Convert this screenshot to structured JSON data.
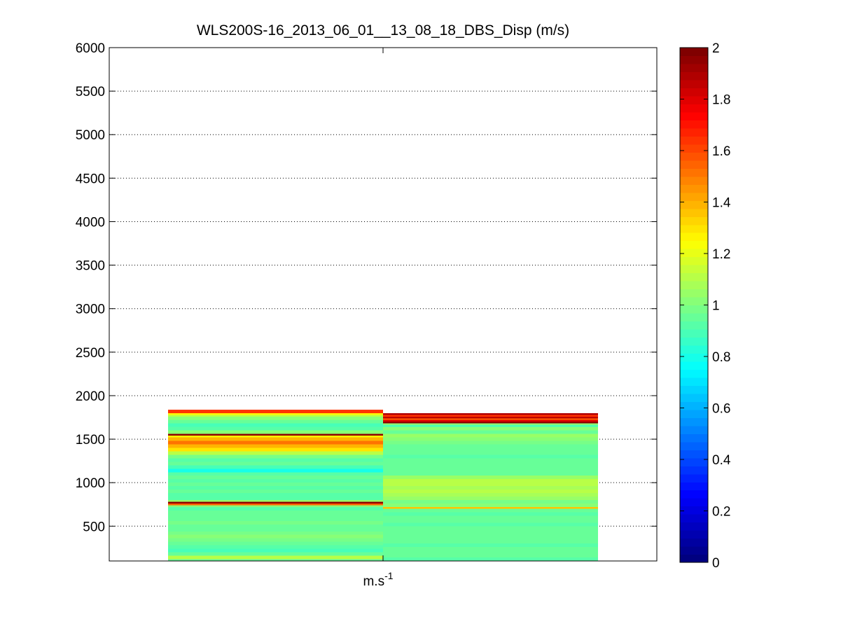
{
  "chart_data": {
    "type": "heatmap",
    "title": "WLS200S-16_2013_06_01__13_08_18_DBS_Disp (m/s)",
    "xlabel": "m.s",
    "xlabel_superscript": "-1",
    "ylim": [
      100,
      6000
    ],
    "yticks": [
      500,
      1000,
      1500,
      2000,
      2500,
      3000,
      3500,
      4000,
      4500,
      5000,
      5500,
      6000
    ],
    "grid": "horizontal dotted",
    "colorbar": {
      "colormap": "jet",
      "clim": [
        0,
        2
      ],
      "ticks": [
        0,
        0.2,
        0.4,
        0.6,
        0.8,
        1,
        1.2,
        1.4,
        1.6,
        1.8,
        2
      ],
      "placement": "right"
    },
    "columns": [
      {
        "x_range": [
          0.5,
          1.5
        ],
        "cells": [
          [
            100,
            120,
            0.95
          ],
          [
            120,
            160,
            1.12
          ],
          [
            160,
            200,
            0.95
          ],
          [
            200,
            240,
            0.9
          ],
          [
            240,
            280,
            0.92
          ],
          [
            280,
            320,
            0.95
          ],
          [
            320,
            360,
            0.97
          ],
          [
            360,
            400,
            1.0
          ],
          [
            400,
            440,
            0.97
          ],
          [
            440,
            480,
            0.95
          ],
          [
            480,
            520,
            0.96
          ],
          [
            520,
            560,
            0.97
          ],
          [
            560,
            600,
            0.96
          ],
          [
            600,
            640,
            0.95
          ],
          [
            640,
            680,
            0.94
          ],
          [
            680,
            720,
            0.92
          ],
          [
            720,
            740,
            1.0
          ],
          [
            740,
            760,
            1.55
          ],
          [
            760,
            780,
            1.95
          ],
          [
            780,
            800,
            1.05
          ],
          [
            800,
            840,
            0.93
          ],
          [
            840,
            880,
            0.92
          ],
          [
            880,
            920,
            0.94
          ],
          [
            920,
            960,
            0.92
          ],
          [
            960,
            1000,
            0.95
          ],
          [
            1000,
            1040,
            0.93
          ],
          [
            1040,
            1080,
            0.96
          ],
          [
            1080,
            1120,
            0.92
          ],
          [
            1120,
            1160,
            0.8
          ],
          [
            1160,
            1200,
            0.88
          ],
          [
            1200,
            1240,
            0.95
          ],
          [
            1240,
            1280,
            0.92
          ],
          [
            1280,
            1320,
            0.98
          ],
          [
            1320,
            1360,
            1.12
          ],
          [
            1360,
            1400,
            1.3
          ],
          [
            1400,
            1440,
            1.4
          ],
          [
            1440,
            1480,
            1.5
          ],
          [
            1480,
            1520,
            1.38
          ],
          [
            1520,
            1540,
            1.25
          ],
          [
            1540,
            1560,
            1.95
          ],
          [
            1560,
            1600,
            1.0
          ],
          [
            1600,
            1640,
            0.92
          ],
          [
            1640,
            1680,
            0.9
          ],
          [
            1680,
            1720,
            0.95
          ],
          [
            1720,
            1760,
            1.0
          ],
          [
            1760,
            1780,
            1.1
          ],
          [
            1780,
            1800,
            1.25
          ],
          [
            1800,
            1840,
            1.65
          ]
        ]
      },
      {
        "x_range": [
          1.5,
          2.5
        ],
        "cells": [
          [
            100,
            140,
            0.92
          ],
          [
            140,
            180,
            0.95
          ],
          [
            180,
            220,
            0.96
          ],
          [
            220,
            260,
            0.95
          ],
          [
            260,
            300,
            0.93
          ],
          [
            300,
            340,
            0.94
          ],
          [
            340,
            380,
            0.95
          ],
          [
            380,
            420,
            0.96
          ],
          [
            420,
            460,
            0.95
          ],
          [
            460,
            500,
            0.94
          ],
          [
            500,
            540,
            0.93
          ],
          [
            540,
            580,
            0.95
          ],
          [
            580,
            620,
            0.94
          ],
          [
            620,
            660,
            0.93
          ],
          [
            660,
            700,
            0.96
          ],
          [
            700,
            720,
            1.35
          ],
          [
            720,
            760,
            1.02
          ],
          [
            760,
            800,
            0.98
          ],
          [
            800,
            840,
            1.05
          ],
          [
            840,
            880,
            1.08
          ],
          [
            880,
            920,
            1.1
          ],
          [
            920,
            960,
            1.08
          ],
          [
            960,
            1000,
            1.12
          ],
          [
            1000,
            1040,
            1.1
          ],
          [
            1040,
            1080,
            1.06
          ],
          [
            1080,
            1120,
            0.96
          ],
          [
            1120,
            1160,
            0.95
          ],
          [
            1160,
            1200,
            0.96
          ],
          [
            1200,
            1240,
            0.95
          ],
          [
            1240,
            1280,
            0.94
          ],
          [
            1280,
            1320,
            0.93
          ],
          [
            1320,
            1360,
            0.96
          ],
          [
            1360,
            1400,
            0.95
          ],
          [
            1400,
            1440,
            0.94
          ],
          [
            1440,
            1480,
            0.98
          ],
          [
            1480,
            1520,
            1.0
          ],
          [
            1520,
            1560,
            1.05
          ],
          [
            1560,
            1600,
            0.96
          ],
          [
            1600,
            1640,
            1.02
          ],
          [
            1640,
            1660,
            0.9
          ],
          [
            1660,
            1680,
            1.0
          ],
          [
            1680,
            1700,
            1.95
          ],
          [
            1700,
            1720,
            1.8
          ],
          [
            1720,
            1740,
            1.55
          ],
          [
            1740,
            1760,
            1.85
          ],
          [
            1760,
            1780,
            1.65
          ],
          [
            1780,
            1800,
            1.9
          ]
        ]
      }
    ]
  }
}
